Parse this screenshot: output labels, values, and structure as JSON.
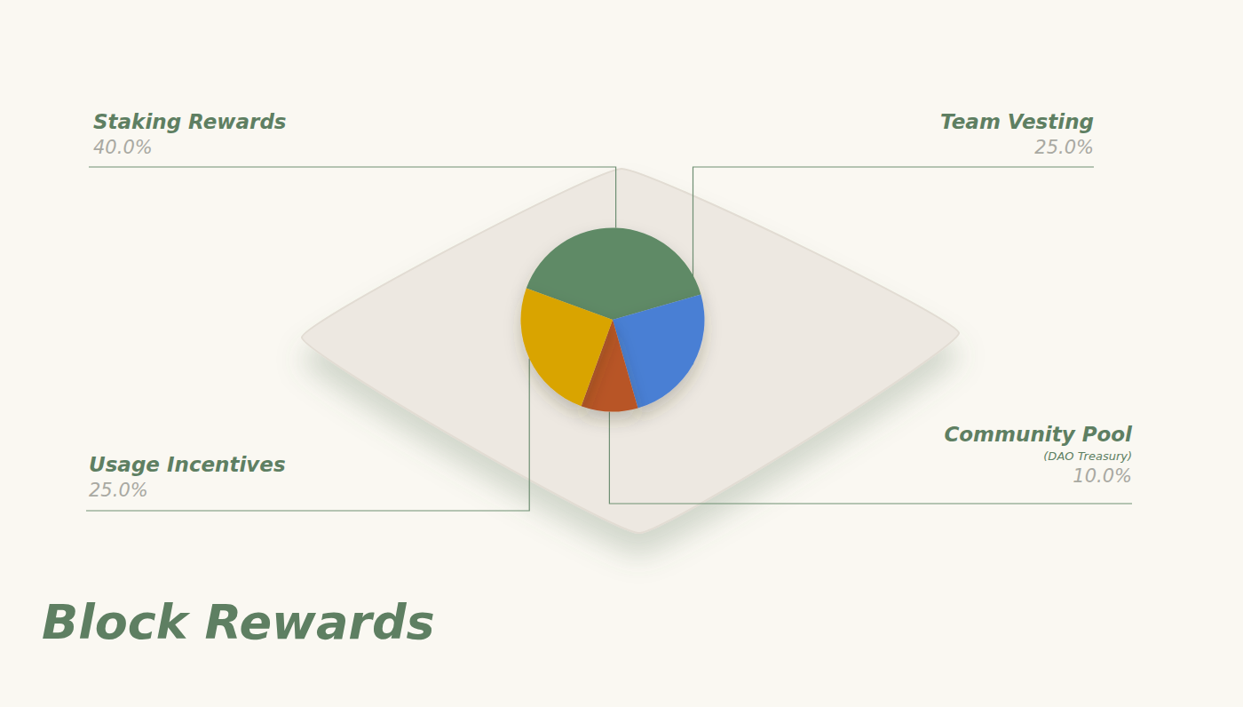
{
  "chart_data": {
    "type": "pie",
    "title": "Block Rewards",
    "categories": [
      "Staking Rewards",
      "Team Vesting",
      "Community Pool\n(DAO Treasury)",
      "Usage Incentives"
    ],
    "values": [
      40,
      25,
      10,
      25
    ],
    "value_labels": [
      "40.0%",
      "25.0%",
      "10.0%",
      "25.0%"
    ],
    "colors": [
      "#5f8a66",
      "#4a7fd4",
      "#b85428",
      "#d9a400"
    ],
    "data_labels": true
  }
}
